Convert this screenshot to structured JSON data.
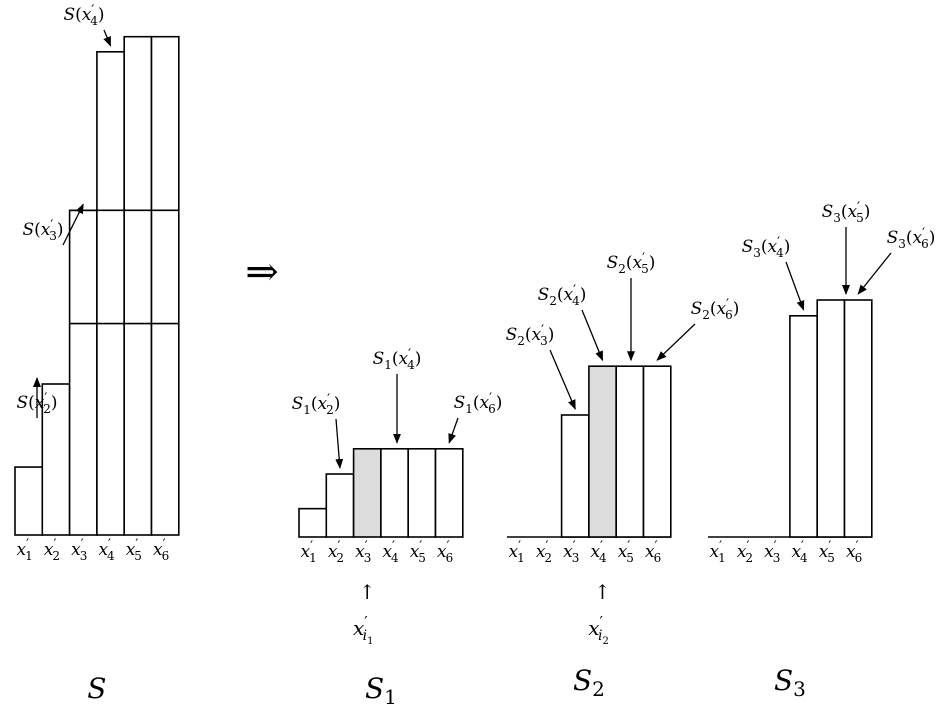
{
  "implies_symbol": "⇒",
  "x_tick_labels": [
    {
      "base": "x",
      "prime": "′",
      "sub": "1"
    },
    {
      "base": "x",
      "prime": "′",
      "sub": "2"
    },
    {
      "base": "x",
      "prime": "′",
      "sub": "3"
    },
    {
      "base": "x",
      "prime": "′",
      "sub": "4"
    },
    {
      "base": "x",
      "prime": "′",
      "sub": "5"
    },
    {
      "base": "x",
      "prime": "′",
      "sub": "6"
    }
  ],
  "panels": [
    {
      "id": "S",
      "caption": {
        "base": "S",
        "sub": ""
      },
      "values": [
        0.9,
        2.0,
        4.3,
        6.4,
        6.6,
        6.6
      ],
      "dividers": [
        2.8,
        4.3
      ],
      "dividers_from_index": 2,
      "shaded_index": null,
      "pointer": null,
      "annotations": [
        {
          "bar_index": 1,
          "label": {
            "func": "S",
            "sub": "",
            "arg": "x",
            "argsub": "2"
          }
        },
        {
          "bar_index": 2,
          "label": {
            "func": "S",
            "sub": "",
            "arg": "x",
            "argsub": "3"
          }
        },
        {
          "bar_index": 3,
          "label": {
            "func": "S",
            "sub": "",
            "arg": "x",
            "argsub": "4"
          }
        }
      ]
    },
    {
      "id": "S1",
      "caption": {
        "base": "S",
        "sub": "1"
      },
      "values": [
        0.9,
        2.0,
        2.8,
        2.8,
        2.8,
        2.8
      ],
      "dividers": [],
      "dividers_from_index": 2,
      "shaded_index": 2,
      "pointer": {
        "symbol": "↑",
        "base": "x",
        "prime": "′",
        "sub": "i",
        "subsub": "1"
      },
      "annotations": [
        {
          "bar_index": 1,
          "label": {
            "func": "S",
            "sub": "1",
            "arg": "x",
            "argsub": "2"
          }
        },
        {
          "bar_index": 3,
          "label": {
            "func": "S",
            "sub": "1",
            "arg": "x",
            "argsub": "4"
          }
        },
        {
          "bar_index": 5,
          "label": {
            "func": "S",
            "sub": "1",
            "arg": "x",
            "argsub": "6"
          }
        }
      ]
    },
    {
      "id": "S2",
      "caption": {
        "base": "S",
        "sub": "2"
      },
      "values": [
        0,
        0,
        2.0,
        2.8,
        2.8,
        2.8
      ],
      "dividers": [],
      "dividers_from_index": 2,
      "shaded_index": 3,
      "pointer": {
        "symbol": "↑",
        "base": "x",
        "prime": "′",
        "sub": "i",
        "subsub": "2"
      },
      "annotations": [
        {
          "bar_index": 2,
          "label": {
            "func": "S",
            "sub": "2",
            "arg": "x",
            "argsub": "3"
          }
        },
        {
          "bar_index": 3,
          "label": {
            "func": "S",
            "sub": "2",
            "arg": "x",
            "argsub": "4"
          }
        },
        {
          "bar_index": 4,
          "label": {
            "func": "S",
            "sub": "2",
            "arg": "x",
            "argsub": "5"
          }
        },
        {
          "bar_index": 5,
          "label": {
            "func": "S",
            "sub": "2",
            "arg": "x",
            "argsub": "6"
          }
        }
      ]
    },
    {
      "id": "S3",
      "caption": {
        "base": "S",
        "sub": "3"
      },
      "values": [
        0,
        0,
        0,
        2.8,
        3.0,
        3.0
      ],
      "dividers": [],
      "dividers_from_index": 2,
      "shaded_index": null,
      "pointer": null,
      "annotations": [
        {
          "bar_index": 3,
          "label": {
            "func": "S",
            "sub": "3",
            "arg": "x",
            "argsub": "4"
          }
        },
        {
          "bar_index": 4,
          "label": {
            "func": "S",
            "sub": "3",
            "arg": "x",
            "argsub": "5"
          }
        },
        {
          "bar_index": 5,
          "label": {
            "func": "S",
            "sub": "3",
            "arg": "x",
            "argsub": "6"
          }
        }
      ]
    }
  ]
}
